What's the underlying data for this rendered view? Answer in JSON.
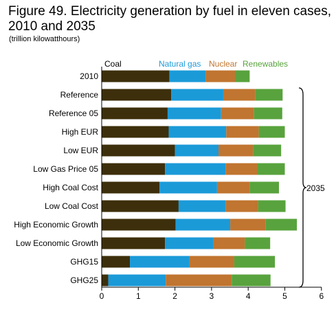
{
  "title": "Figure 49. Electricity generation by fuel in eleven cases, 2010 and 2035",
  "subtitle": "(trillion kilowatthours)",
  "chart_data": {
    "type": "bar",
    "orientation": "horizontal",
    "stacked": true,
    "categories": [
      "2010",
      "Reference",
      "Reference 05",
      "High EUR",
      "Low EUR",
      "Low Gas Price 05",
      "High Coal Cost",
      "Low Coal Cost",
      "High Economic Growth",
      "Low Economic Growth",
      "GHG15",
      "GHG25"
    ],
    "series": [
      {
        "name": "Coal",
        "color": "#3d2f0b",
        "values": [
          1.85,
          1.9,
          1.8,
          1.83,
          2.0,
          1.73,
          1.58,
          2.1,
          2.02,
          1.73,
          0.77,
          0.18
        ]
      },
      {
        "name": "Natural gas",
        "color": "#1b9ad8",
        "values": [
          0.99,
          1.42,
          1.46,
          1.57,
          1.19,
          1.65,
          1.57,
          1.29,
          1.49,
          1.32,
          1.63,
          1.57
        ]
      },
      {
        "name": "Nuclear",
        "color": "#c07530",
        "values": [
          0.8,
          0.87,
          0.9,
          0.89,
          0.94,
          0.87,
          0.89,
          0.88,
          0.96,
          0.86,
          1.22,
          1.8
        ]
      },
      {
        "name": "Renewables",
        "color": "#58a33d",
        "values": [
          0.4,
          0.75,
          0.77,
          0.71,
          0.77,
          0.75,
          0.8,
          0.75,
          0.86,
          0.69,
          1.11,
          1.06
        ]
      }
    ],
    "xlim": [
      0,
      6
    ],
    "xticks": [
      "0",
      "1",
      "2",
      "3",
      "4",
      "5",
      "6"
    ],
    "bracket_label": "2035",
    "legend_position": "top",
    "grid": false
  }
}
